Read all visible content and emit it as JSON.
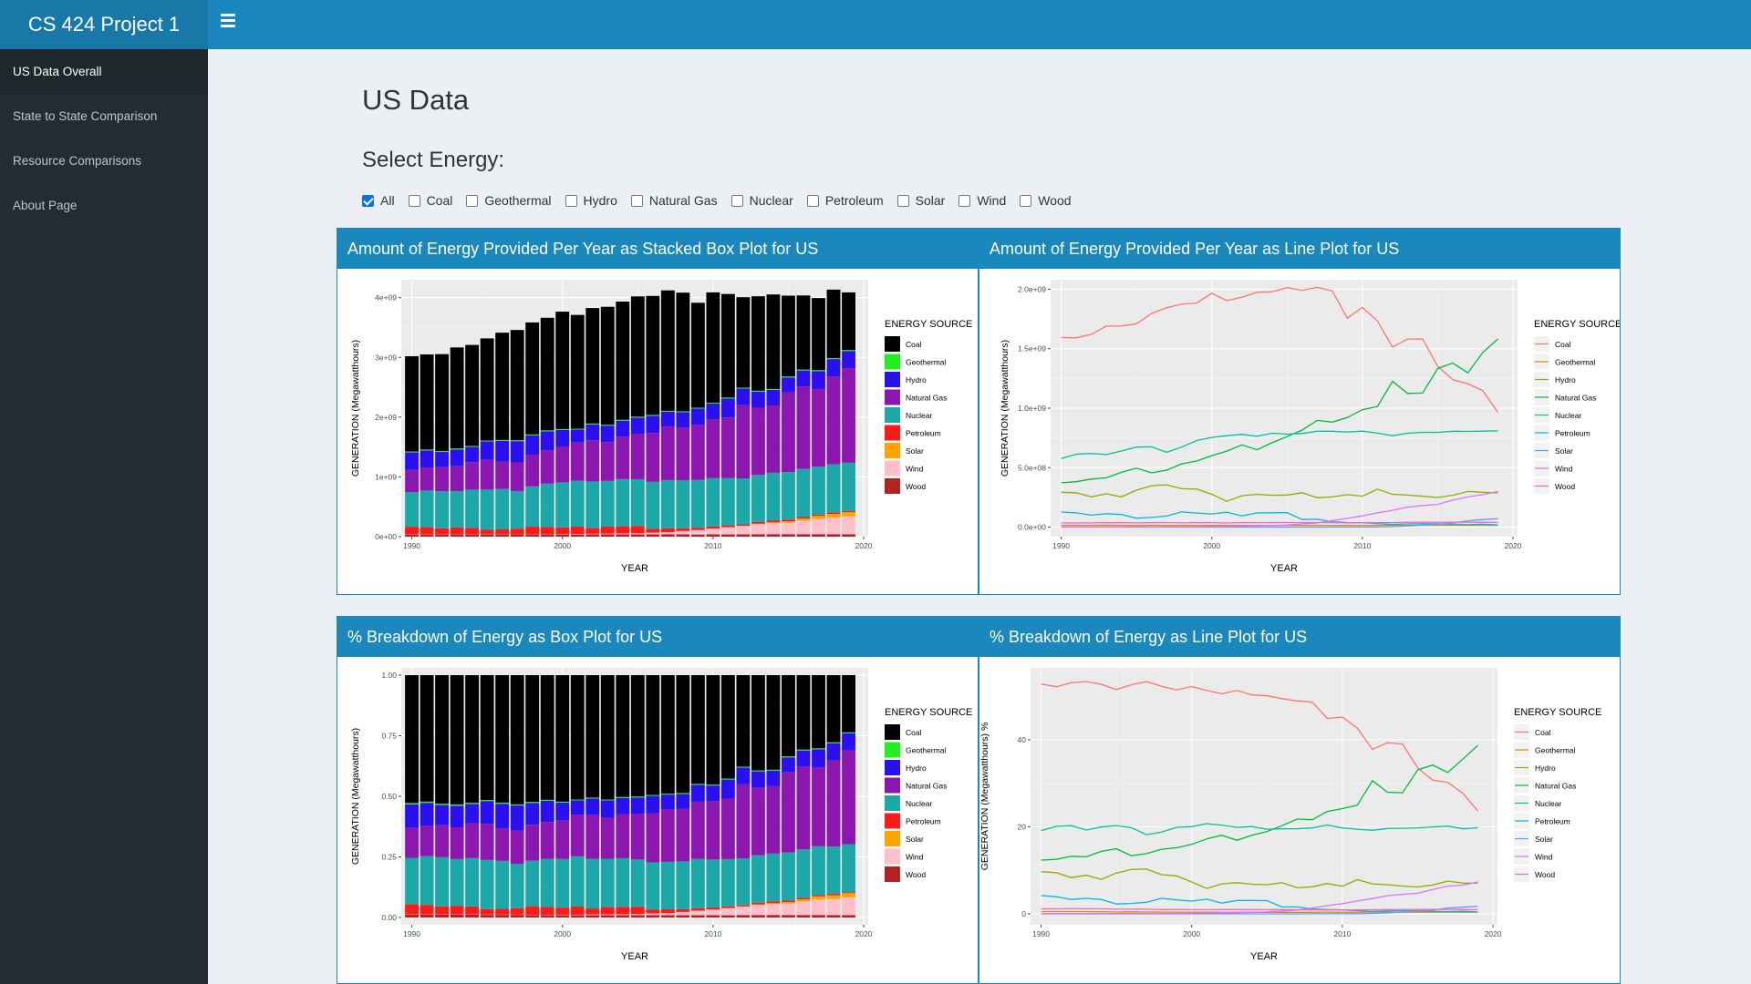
{
  "app": {
    "title": "CS 424 Project 1"
  },
  "sidebar": {
    "items": [
      {
        "label": "US Data Overall",
        "active": true
      },
      {
        "label": "State to State Comparison",
        "active": false
      },
      {
        "label": "Resource Comparisons",
        "active": false
      },
      {
        "label": "About Page",
        "active": false
      }
    ]
  },
  "main": {
    "title": "US Data",
    "select_label": "Select Energy:",
    "checkboxes": [
      {
        "label": "All",
        "checked": true
      },
      {
        "label": "Coal",
        "checked": false
      },
      {
        "label": "Geothermal",
        "checked": false
      },
      {
        "label": "Hydro",
        "checked": false
      },
      {
        "label": "Natural Gas",
        "checked": false
      },
      {
        "label": "Nuclear",
        "checked": false
      },
      {
        "label": "Petroleum",
        "checked": false
      },
      {
        "label": "Solar",
        "checked": false
      },
      {
        "label": "Wind",
        "checked": false
      },
      {
        "label": "Wood",
        "checked": false
      }
    ]
  },
  "panels": [
    {
      "title": "Amount of Energy Provided Per Year as Stacked Box Plot for US"
    },
    {
      "title": "Amount of Energy Provided Per Year as Line Plot for US"
    },
    {
      "title": "% Breakdown of Energy as Box Plot for US"
    },
    {
      "title": "% Breakdown of Energy as Line Plot for US"
    }
  ],
  "chart_data": [
    {
      "type": "bar",
      "stacked": true,
      "xlabel": "YEAR",
      "ylabel": "GENERATION (Megawatthours)",
      "legend_title": "ENERGY SOURCE",
      "legend_position": "right",
      "x_ticks": [
        "1990",
        "2000",
        "2010",
        "2020"
      ],
      "y_ticks": [
        "0e+00",
        "1e+09",
        "2e+09",
        "3e+09",
        "4e+09"
      ],
      "ylim": [
        0,
        4300000000
      ],
      "xlim": [
        1989.3,
        2020.3
      ],
      "categories": [
        1990,
        1991,
        1992,
        1993,
        1994,
        1995,
        1996,
        1997,
        1998,
        1999,
        2000,
        2001,
        2002,
        2003,
        2004,
        2005,
        2006,
        2007,
        2008,
        2009,
        2010,
        2011,
        2012,
        2013,
        2014,
        2015,
        2016,
        2017,
        2018,
        2019
      ],
      "series": [
        {
          "name": "Wood",
          "color": "#b22222",
          "values": [
            0.036,
            0.035,
            0.036,
            0.037,
            0.037,
            0.036,
            0.037,
            0.038,
            0.036,
            0.037,
            0.037,
            0.035,
            0.038,
            0.038,
            0.038,
            0.039,
            0.039,
            0.039,
            0.038,
            0.036,
            0.038,
            0.037,
            0.038,
            0.04,
            0.042,
            0.041,
            0.041,
            0.041,
            0.041,
            0.039
          ]
        },
        {
          "name": "Wind",
          "color": "#ffc0cb",
          "values": [
            0.003,
            0.003,
            0.003,
            0.003,
            0.003,
            0.003,
            0.003,
            0.003,
            0.003,
            0.004,
            0.006,
            0.007,
            0.01,
            0.011,
            0.014,
            0.018,
            0.027,
            0.035,
            0.055,
            0.074,
            0.095,
            0.12,
            0.141,
            0.168,
            0.182,
            0.191,
            0.227,
            0.254,
            0.273,
            0.3
          ]
        },
        {
          "name": "Solar",
          "color": "#ffa500",
          "values": [
            0.0004,
            0.0005,
            0.0004,
            0.0005,
            0.0005,
            0.0005,
            0.0005,
            0.0005,
            0.0005,
            0.0005,
            0.0005,
            0.0005,
            0.0006,
            0.0005,
            0.0006,
            0.0006,
            0.0005,
            0.0006,
            0.0009,
            0.0009,
            0.0012,
            0.0018,
            0.0043,
            0.009,
            0.018,
            0.025,
            0.036,
            0.053,
            0.064,
            0.071
          ]
        },
        {
          "name": "Petroleum",
          "color": "#ff1a1a",
          "values": [
            0.127,
            0.12,
            0.101,
            0.113,
            0.106,
            0.075,
            0.082,
            0.093,
            0.128,
            0.118,
            0.111,
            0.125,
            0.095,
            0.119,
            0.121,
            0.122,
            0.064,
            0.066,
            0.046,
            0.039,
            0.037,
            0.03,
            0.023,
            0.027,
            0.03,
            0.028,
            0.024,
            0.021,
            0.025,
            0.018
          ]
        },
        {
          "name": "Nuclear",
          "color": "#1ca8a8",
          "values": [
            0.577,
            0.613,
            0.619,
            0.61,
            0.64,
            0.673,
            0.675,
            0.629,
            0.673,
            0.728,
            0.754,
            0.769,
            0.78,
            0.764,
            0.789,
            0.782,
            0.787,
            0.806,
            0.806,
            0.799,
            0.807,
            0.79,
            0.769,
            0.789,
            0.797,
            0.797,
            0.806,
            0.805,
            0.807,
            0.809
          ]
        },
        {
          "name": "Natural Gas",
          "color": "#8b16b0",
          "values": [
            0.373,
            0.382,
            0.404,
            0.415,
            0.461,
            0.496,
            0.456,
            0.479,
            0.532,
            0.556,
            0.601,
            0.639,
            0.691,
            0.65,
            0.71,
            0.761,
            0.816,
            0.897,
            0.883,
            0.921,
            0.988,
            1.014,
            1.226,
            1.124,
            1.127,
            1.334,
            1.379,
            1.297,
            1.469,
            1.582
          ]
        },
        {
          "name": "Hydro",
          "color": "#2a10f0",
          "values": [
            0.293,
            0.289,
            0.254,
            0.281,
            0.254,
            0.311,
            0.348,
            0.356,
            0.323,
            0.32,
            0.276,
            0.217,
            0.264,
            0.276,
            0.268,
            0.27,
            0.289,
            0.247,
            0.254,
            0.273,
            0.26,
            0.319,
            0.276,
            0.269,
            0.259,
            0.249,
            0.268,
            0.3,
            0.293,
            0.288
          ]
        },
        {
          "name": "Geothermal",
          "color": "#22ee22",
          "values": [
            0.016,
            0.016,
            0.016,
            0.017,
            0.016,
            0.014,
            0.016,
            0.015,
            0.015,
            0.015,
            0.014,
            0.014,
            0.014,
            0.014,
            0.015,
            0.015,
            0.015,
            0.015,
            0.015,
            0.015,
            0.015,
            0.016,
            0.016,
            0.016,
            0.016,
            0.016,
            0.016,
            0.016,
            0.016,
            0.016
          ]
        },
        {
          "name": "Coal",
          "color": "#000000",
          "values": [
            1.594,
            1.591,
            1.621,
            1.69,
            1.691,
            1.709,
            1.796,
            1.845,
            1.874,
            1.884,
            1.966,
            1.904,
            1.933,
            1.974,
            1.978,
            2.013,
            1.991,
            2.016,
            1.986,
            1.756,
            1.847,
            1.733,
            1.514,
            1.581,
            1.582,
            1.352,
            1.239,
            1.206,
            1.146,
            0.965
          ]
        }
      ],
      "value_unit_note": "values in billions of MWh (1e9)"
    },
    {
      "type": "line",
      "xlabel": "YEAR",
      "ylabel": "GENERATION (Megawatthours)",
      "legend_title": "ENERGY SOURCE",
      "legend_position": "right",
      "x_ticks": [
        "1990",
        "2000",
        "2010",
        "2020"
      ],
      "y_ticks": [
        "0.0e+00",
        "5.0e+08",
        "1.0e+09",
        "1.5e+09",
        "2.0e+09"
      ],
      "ylim": [
        -80000000,
        2080000000
      ],
      "xlim": [
        1989.3,
        2020.3
      ],
      "categories": [
        1990,
        1991,
        1992,
        1993,
        1994,
        1995,
        1996,
        1997,
        1998,
        1999,
        2000,
        2001,
        2002,
        2003,
        2004,
        2005,
        2006,
        2007,
        2008,
        2009,
        2010,
        2011,
        2012,
        2013,
        2014,
        2015,
        2016,
        2017,
        2018,
        2019
      ],
      "series_ref": "same values as chart 1, rendered as lines",
      "series": [
        {
          "name": "Coal",
          "color": "#f8766d"
        },
        {
          "name": "Geothermal",
          "color": "#d39200"
        },
        {
          "name": "Hydro",
          "color": "#93aa00"
        },
        {
          "name": "Natural Gas",
          "color": "#00ba38"
        },
        {
          "name": "Nuclear",
          "color": "#00c19f"
        },
        {
          "name": "Petroleum",
          "color": "#00b9e3"
        },
        {
          "name": "Solar",
          "color": "#619cff"
        },
        {
          "name": "Wind",
          "color": "#db72fb"
        },
        {
          "name": "Wood",
          "color": "#ff61c3"
        }
      ]
    },
    {
      "type": "bar",
      "stacked": true,
      "percent": true,
      "xlabel": "YEAR",
      "ylabel": "GENERATION (Megawatthours)",
      "legend_title": "ENERGY SOURCE",
      "legend_position": "right",
      "x_ticks": [
        "1990",
        "2000",
        "2010",
        "2020"
      ],
      "y_ticks": [
        "0.00",
        "0.25",
        "0.50",
        "0.75",
        "1.00"
      ],
      "ylim": [
        -0.03,
        1.03
      ]
    },
    {
      "type": "line",
      "percent": true,
      "xlabel": "YEAR",
      "ylabel": "GENERATION (Megawatthours) %",
      "legend_title": "ENERGY SOURCE",
      "legend_position": "right",
      "x_ticks": [
        "1990",
        "2000",
        "2010",
        "2020"
      ],
      "y_ticks": [
        "0",
        "20",
        "40"
      ],
      "ylim": [
        -2.5,
        56.5
      ]
    }
  ]
}
